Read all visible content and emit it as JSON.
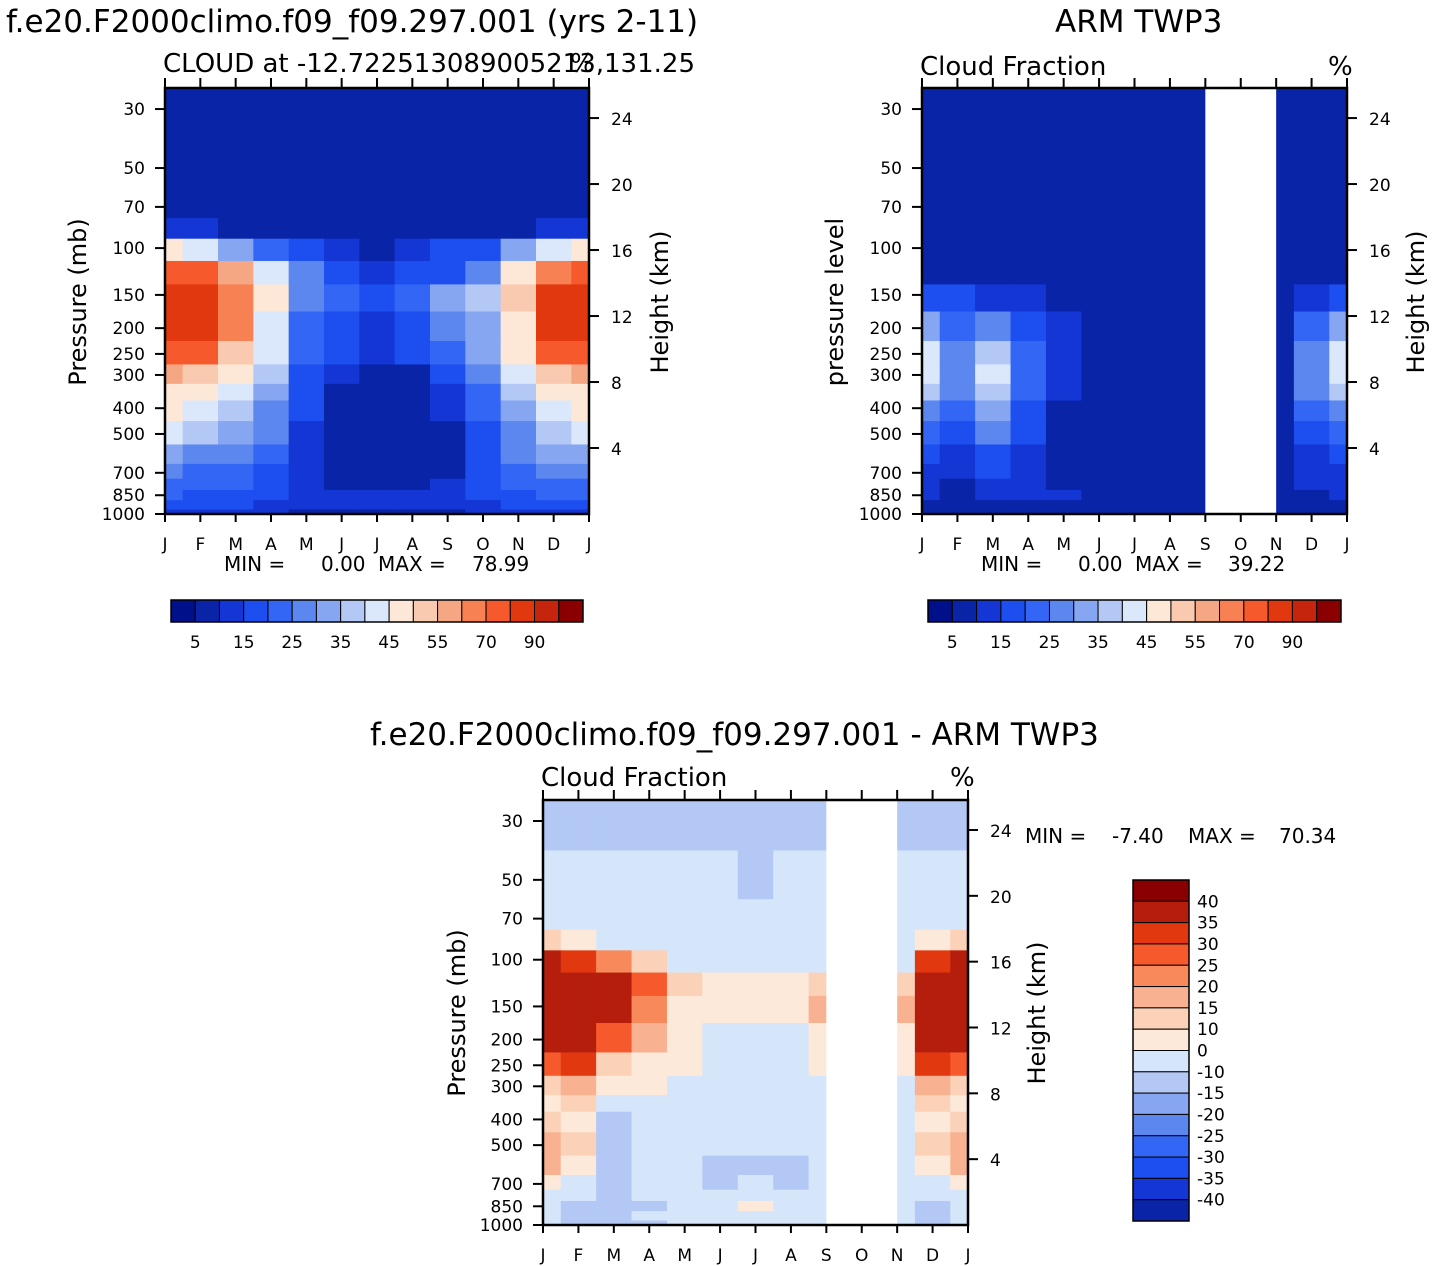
{
  "colors": {
    "cloud_scale": [
      "#000f8a",
      "#0a24a8",
      "#1336d4",
      "#1d4ff0",
      "#3366f5",
      "#5c87ee",
      "#86a6f2",
      "#b3c8f5",
      "#dbe7fa",
      "#fde7d7",
      "#f9cab0",
      "#f5a784",
      "#f78153",
      "#f65a2c",
      "#e1380f",
      "#c5250d",
      "#8a0000"
    ],
    "diff_scale": [
      "#000f8a",
      "#0a24a8",
      "#1336d4",
      "#1d4ff0",
      "#3366f5",
      "#5c87ee",
      "#86a6f2",
      "#b3c8f5",
      "#d6e6fa",
      "#fde9da",
      "#fbd1b8",
      "#f8b292",
      "#f7895a",
      "#f65a2c",
      "#e1380f",
      "#b51d0d",
      "#8a0000"
    ],
    "missing": "#ffffff"
  },
  "panel1": {
    "title": "f.e20.F2000climo.f09_f09.297.001 (yrs 2-11)",
    "left_label": "CLOUD at -12.722513089005213,131.25",
    "units": "%",
    "ylabel": "Pressure (mb)",
    "ylabel2": "Height (km)",
    "min_label": "MIN =",
    "min_value": "0.00",
    "max_label": "MAX =",
    "max_value": "78.99"
  },
  "panel2": {
    "title": "ARM TWP3",
    "left_label": "Cloud Fraction",
    "units": "%",
    "ylabel": "pressure level",
    "ylabel2": "Height (km)",
    "min_label": "MIN =",
    "min_value": "0.00",
    "max_label": "MAX =",
    "max_value": "39.22"
  },
  "panel3": {
    "title": "f.e20.F2000climo.f09_f09.297.001 - ARM TWP3",
    "left_label": "Cloud Fraction",
    "units": "%",
    "ylabel": "Pressure (mb)",
    "ylabel2": "Height (km)",
    "min_label": "MIN =",
    "min_value": "-7.40",
    "max_label": "MAX =",
    "max_value": "70.34"
  },
  "chart_data": [
    {
      "type": "heatmap",
      "title": "f.e20.F2000climo.f09_f09.297.001 (yrs 2-11)",
      "subtitle": "CLOUD at -12.722513089005213,131.25",
      "xlabel": "",
      "ylabel": "Pressure (mb)",
      "ylabel_right": "Height (km)",
      "x_ticks": [
        "J",
        "F",
        "M",
        "A",
        "M",
        "J",
        "J",
        "A",
        "S",
        "O",
        "N",
        "D",
        "J"
      ],
      "y_ticks": [
        30,
        50,
        70,
        100,
        150,
        200,
        250,
        300,
        400,
        500,
        700,
        850,
        1000
      ],
      "y_right_ticks": [
        24,
        20,
        16,
        12,
        8,
        4
      ],
      "ylim": [
        1000,
        25
      ],
      "y_scale": "log",
      "colorbar_labels": [
        "5",
        "15",
        "25",
        "35",
        "45",
        "55",
        "70",
        "90"
      ],
      "pressure_levels": [
        25,
        30,
        50,
        70,
        85,
        100,
        125,
        150,
        200,
        250,
        300,
        350,
        400,
        500,
        600,
        700,
        775,
        850,
        925,
        1000
      ],
      "values": [
        [
          0,
          0,
          0,
          0,
          0,
          0,
          0,
          0,
          0,
          0,
          0,
          0,
          0
        ],
        [
          0,
          0,
          0,
          0,
          0,
          0,
          0,
          0,
          0,
          0,
          0,
          0,
          0
        ],
        [
          0,
          0,
          0,
          0,
          0,
          0,
          0,
          0,
          0,
          0,
          0,
          0,
          0
        ],
        [
          2,
          1,
          1,
          1,
          0,
          0,
          0,
          0,
          0,
          1,
          1,
          1,
          2
        ],
        [
          6,
          5,
          4,
          3,
          2,
          2,
          1,
          2,
          3,
          3,
          4,
          5,
          6
        ],
        [
          40,
          35,
          28,
          18,
          10,
          6,
          3,
          6,
          10,
          14,
          25,
          35,
          40
        ],
        [
          65,
          60,
          50,
          35,
          20,
          12,
          8,
          10,
          14,
          22,
          40,
          58,
          65
        ],
        [
          75,
          73,
          58,
          40,
          22,
          16,
          12,
          18,
          28,
          30,
          48,
          70,
          75
        ],
        [
          74,
          72,
          55,
          38,
          18,
          12,
          8,
          12,
          22,
          28,
          44,
          70,
          74
        ],
        [
          65,
          60,
          48,
          35,
          16,
          10,
          6,
          10,
          18,
          26,
          40,
          62,
          65
        ],
        [
          50,
          48,
          40,
          30,
          14,
          6,
          3,
          4,
          12,
          22,
          35,
          48,
          50
        ],
        [
          44,
          40,
          35,
          26,
          12,
          3,
          1,
          2,
          8,
          18,
          30,
          40,
          44
        ],
        [
          40,
          35,
          30,
          22,
          10,
          2,
          0,
          1,
          6,
          16,
          28,
          36,
          40
        ],
        [
          38,
          30,
          26,
          20,
          8,
          1,
          0,
          0,
          4,
          14,
          24,
          32,
          38
        ],
        [
          28,
          24,
          22,
          16,
          6,
          2,
          0,
          0,
          4,
          12,
          20,
          26,
          28
        ],
        [
          20,
          18,
          18,
          14,
          6,
          2,
          1,
          1,
          4,
          10,
          18,
          20,
          20
        ],
        [
          18,
          17,
          16,
          12,
          8,
          4,
          2,
          2,
          5,
          10,
          16,
          18,
          18
        ],
        [
          15,
          14,
          13,
          10,
          8,
          6,
          6,
          6,
          7,
          10,
          14,
          15,
          15
        ],
        [
          12,
          12,
          10,
          8,
          7,
          7,
          7,
          7,
          7,
          8,
          10,
          12,
          12
        ],
        [
          6,
          6,
          5,
          5,
          4,
          4,
          4,
          4,
          4,
          5,
          5,
          6,
          6
        ]
      ],
      "min": 0.0,
      "max": 78.99
    },
    {
      "type": "heatmap",
      "title": "ARM TWP3",
      "subtitle": "Cloud Fraction",
      "xlabel": "",
      "ylabel": "pressure level",
      "ylabel_right": "Height (km)",
      "x_ticks": [
        "J",
        "F",
        "M",
        "A",
        "M",
        "J",
        "J",
        "A",
        "S",
        "O",
        "N",
        "D",
        "J"
      ],
      "y_ticks": [
        30,
        50,
        70,
        100,
        150,
        200,
        250,
        300,
        400,
        500,
        700,
        850,
        1000
      ],
      "y_right_ticks": [
        24,
        20,
        16,
        12,
        8,
        4
      ],
      "ylim": [
        1000,
        25
      ],
      "y_scale": "log",
      "colorbar_labels": [
        "5",
        "15",
        "25",
        "35",
        "45",
        "55",
        "70",
        "90"
      ],
      "missing_months": [
        8,
        9
      ],
      "pressure_levels": [
        25,
        30,
        50,
        70,
        85,
        100,
        125,
        150,
        200,
        250,
        300,
        350,
        400,
        500,
        600,
        700,
        775,
        850,
        925,
        1000
      ],
      "values": [
        [
          0,
          0,
          0,
          0,
          0,
          0,
          0,
          0,
          0,
          0,
          0,
          0,
          0
        ],
        [
          0,
          0,
          0,
          0,
          0,
          0,
          0,
          0,
          0,
          0,
          0,
          0,
          0
        ],
        [
          0,
          0,
          0,
          0,
          0,
          0,
          0,
          0,
          0,
          0,
          0,
          0,
          0
        ],
        [
          0,
          0,
          0,
          0,
          0,
          0,
          0,
          0,
          0,
          0,
          0,
          0,
          0
        ],
        [
          0,
          0,
          0,
          0,
          0,
          0,
          0,
          0,
          0,
          0,
          0,
          0,
          0
        ],
        [
          0,
          0,
          0,
          0,
          0,
          0,
          0,
          0,
          0,
          0,
          0,
          0,
          0
        ],
        [
          4,
          2,
          2,
          1,
          0,
          0,
          0,
          0,
          0,
          0,
          0,
          2,
          4
        ],
        [
          12,
          10,
          8,
          6,
          3,
          0,
          0,
          0,
          0,
          0,
          0,
          8,
          12
        ],
        [
          25,
          18,
          20,
          14,
          6,
          0,
          0,
          0,
          0,
          0,
          0,
          16,
          25
        ],
        [
          35,
          22,
          30,
          18,
          6,
          0,
          0,
          0,
          0,
          0,
          0,
          20,
          35
        ],
        [
          38,
          24,
          36,
          18,
          6,
          0,
          0,
          0,
          0,
          0,
          0,
          22,
          38
        ],
        [
          32,
          20,
          32,
          16,
          5,
          0,
          0,
          0,
          0,
          0,
          0,
          20,
          32
        ],
        [
          24,
          16,
          28,
          14,
          4,
          0,
          0,
          0,
          0,
          0,
          0,
          16,
          24
        ],
        [
          16,
          12,
          22,
          10,
          3,
          0,
          0,
          0,
          0,
          0,
          0,
          12,
          16
        ],
        [
          10,
          8,
          14,
          8,
          3,
          0,
          0,
          0,
          0,
          0,
          0,
          8,
          10
        ],
        [
          8,
          6,
          10,
          6,
          2,
          0,
          0,
          0,
          0,
          0,
          0,
          6,
          8
        ],
        [
          6,
          3,
          8,
          5,
          3,
          1,
          0,
          0,
          0,
          0,
          0,
          5,
          6
        ],
        [
          5,
          3,
          6,
          6,
          6,
          3,
          0,
          0,
          0,
          0,
          0,
          4,
          5
        ],
        [
          4,
          3,
          4,
          4,
          3,
          2,
          0,
          0,
          0,
          0,
          0,
          3,
          4
        ],
        [
          1,
          1,
          1,
          1,
          1,
          1,
          0,
          0,
          0,
          0,
          0,
          1,
          1
        ]
      ],
      "min": 0.0,
      "max": 39.22
    },
    {
      "type": "heatmap",
      "title": "f.e20.F2000climo.f09_f09.297.001 - ARM TWP3",
      "subtitle": "Cloud Fraction",
      "xlabel": "",
      "ylabel": "Pressure (mb)",
      "ylabel_right": "Height (km)",
      "x_ticks": [
        "J",
        "F",
        "M",
        "A",
        "M",
        "J",
        "J",
        "A",
        "S",
        "O",
        "N",
        "D",
        "J"
      ],
      "y_ticks": [
        30,
        50,
        70,
        100,
        150,
        200,
        250,
        300,
        400,
        500,
        700,
        850,
        1000
      ],
      "y_right_ticks": [
        24,
        20,
        16,
        12,
        8,
        4
      ],
      "ylim": [
        1000,
        25
      ],
      "y_scale": "log",
      "colorbar_labels": [
        "40",
        "35",
        "30",
        "25",
        "20",
        "15",
        "10",
        "0",
        "-10",
        "-15",
        "-20",
        "-25",
        "-30",
        "-35",
        "-40"
      ],
      "missing_months": [
        8,
        9
      ],
      "pressure_levels": [
        25,
        30,
        50,
        70,
        85,
        100,
        125,
        150,
        200,
        250,
        300,
        350,
        400,
        500,
        600,
        700,
        775,
        850,
        925,
        1000
      ],
      "values": [
        [
          -1,
          -1,
          -1,
          -1,
          -1,
          -1,
          -1,
          -1,
          -1,
          -1,
          -1,
          -1,
          -1
        ],
        [
          -1,
          -1,
          -1,
          -1,
          -1,
          -1,
          -1,
          -1,
          -1,
          -1,
          -1,
          -1,
          -1
        ],
        [
          2,
          2,
          2,
          2,
          2,
          1,
          -1,
          1,
          2,
          2,
          2,
          2,
          2
        ],
        [
          3,
          3,
          3,
          3,
          3,
          2,
          2,
          3,
          3,
          3,
          3,
          3,
          3
        ],
        [
          15,
          12,
          8,
          6,
          4,
          3,
          3,
          3,
          3,
          3,
          3,
          12,
          15
        ],
        [
          42,
          38,
          28,
          16,
          9,
          6,
          5,
          6,
          8,
          8,
          8,
          38,
          42
        ],
        [
          62,
          56,
          44,
          30,
          17,
          12,
          10,
          12,
          18,
          18,
          18,
          56,
          62
        ],
        [
          70,
          64,
          48,
          26,
          14,
          10,
          10,
          14,
          20,
          20,
          20,
          62,
          70
        ],
        [
          50,
          54,
          34,
          22,
          12,
          8,
          6,
          8,
          12,
          12,
          12,
          54,
          50
        ],
        [
          30,
          38,
          18,
          12,
          10,
          8,
          6,
          8,
          10,
          10,
          10,
          38,
          30
        ],
        [
          18,
          20,
          12,
          10,
          8,
          6,
          4,
          6,
          8,
          8,
          8,
          20,
          18
        ],
        [
          14,
          15,
          8,
          8,
          6,
          4,
          3,
          4,
          6,
          6,
          6,
          15,
          14
        ],
        [
          16,
          10,
          -2,
          8,
          6,
          4,
          2,
          4,
          6,
          6,
          6,
          10,
          16
        ],
        [
          22,
          18,
          -4,
          8,
          5,
          3,
          2,
          2,
          4,
          4,
          4,
          18,
          22
        ],
        [
          20,
          12,
          -2,
          6,
          4,
          -2,
          -4,
          -3,
          2,
          2,
          2,
          12,
          20
        ],
        [
          12,
          8,
          -5,
          3,
          2,
          -3,
          2,
          -4,
          2,
          2,
          2,
          8,
          12
        ],
        [
          8,
          6,
          -3,
          2,
          2,
          2,
          2,
          2,
          2,
          2,
          2,
          6,
          8
        ],
        [
          6,
          -2,
          -4,
          -2,
          2,
          2,
          14,
          2,
          2,
          2,
          2,
          -2,
          6
        ],
        [
          3,
          -3,
          -3,
          3,
          2,
          2,
          3,
          3,
          3,
          3,
          3,
          -3,
          3
        ],
        [
          5,
          -2,
          -2,
          -2,
          2,
          2,
          2,
          2,
          2,
          2,
          2,
          -2,
          5
        ]
      ],
      "min": -7.4,
      "max": 70.34
    }
  ]
}
